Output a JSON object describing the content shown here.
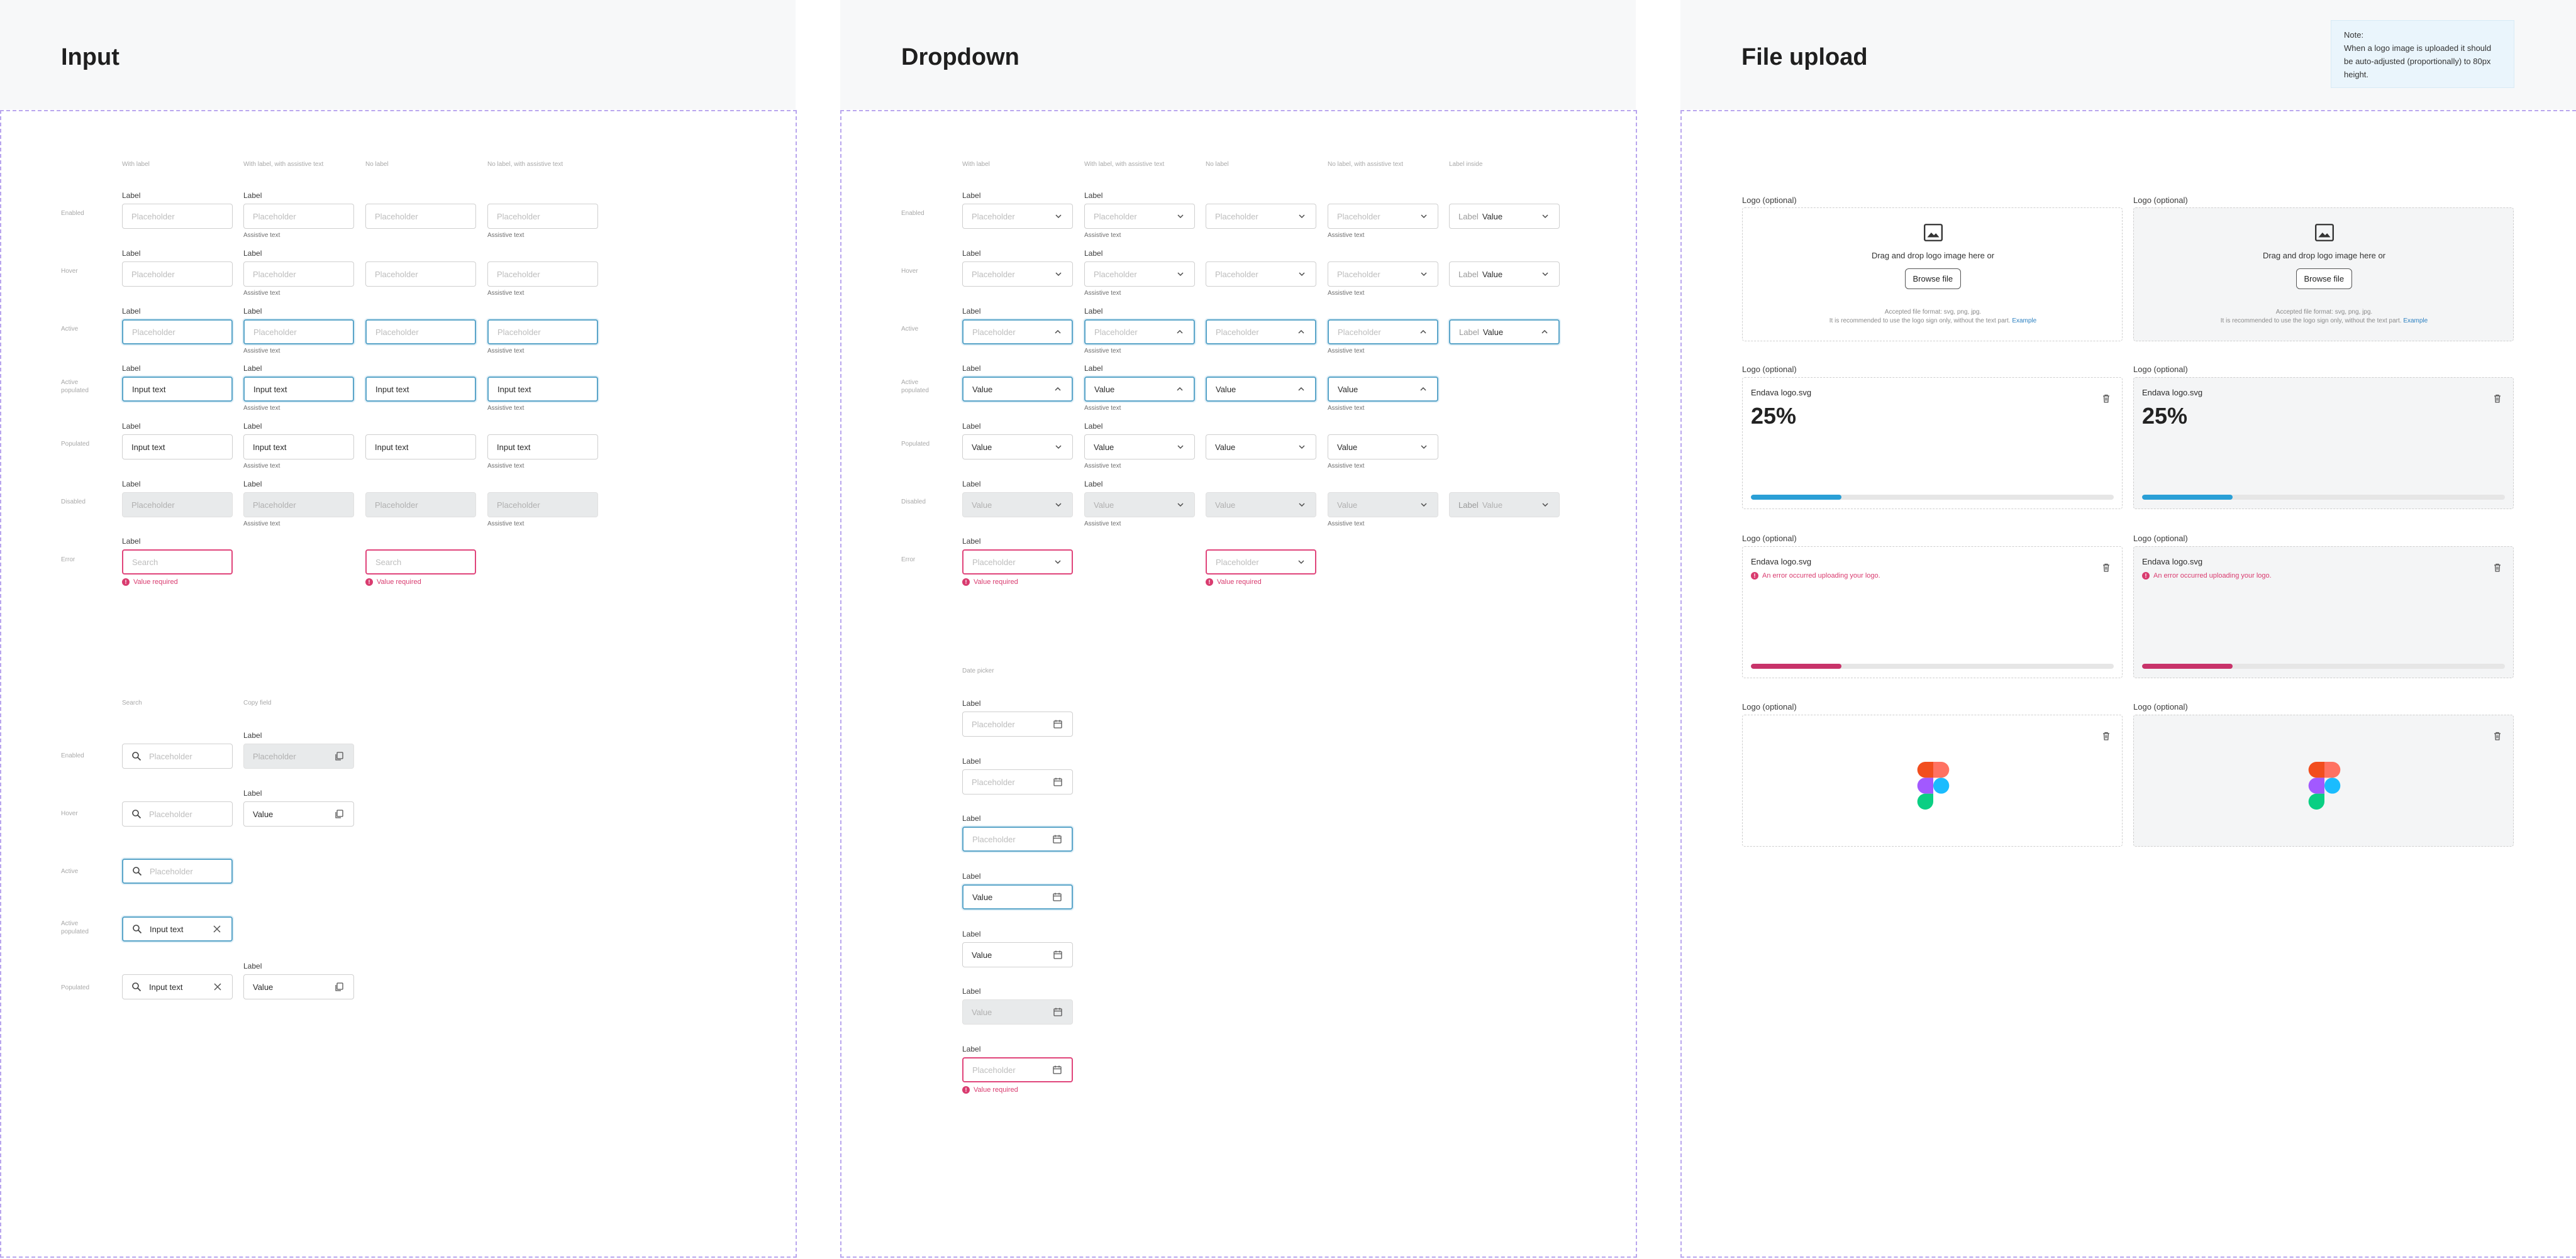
{
  "frames": {
    "input": {
      "title": "Input"
    },
    "dropdown": {
      "title": "Dropdown"
    },
    "upload": {
      "title": "File upload"
    }
  },
  "common": {
    "label": "Label",
    "placeholder": "Placeholder",
    "assistive": "Assistive text",
    "input_text": "Input text",
    "value": "Value",
    "search_ph": "Search",
    "error": "Value required"
  },
  "states": {
    "enabled": "Enabled",
    "hover": "Hover",
    "active": "Active",
    "active_populated": "Active populated",
    "populated": "Populated",
    "disabled": "Disabled",
    "error": "Error"
  },
  "input_cols": [
    "With label",
    "With label, with assistive text",
    "No label",
    "No label, with assistive text"
  ],
  "dropdown_cols": [
    "With label",
    "With label, with assistive text",
    "No label",
    "No label, with assistive text",
    "Label inside"
  ],
  "search_cols": [
    "Search",
    "Copy field"
  ],
  "date_picker_title": "Date picker",
  "upload": {
    "note": "Note:\nWhen a logo image is uploaded it should be auto-adjusted (proportionally) to 80px height.",
    "logo_label": "Logo (optional)",
    "drag_text": "Drag and drop logo image here or",
    "browse": "Browse file",
    "accepted": "Accepted file format: svg, png, jpg.",
    "recommend": "It is recommended to use the logo sign only, without the text part.",
    "example": "Example",
    "filename": "Endava logo.svg",
    "progress_text": "25%",
    "progress_value": 0.25,
    "error_msg": "An error occurred uploading your logo.",
    "colors": {
      "progress": "#2a9fd6",
      "error": "#c8336a",
      "accent": "#2a7fc0"
    }
  },
  "colors": {
    "active_border": "#5aa5c9",
    "error": "#e0457b",
    "frame_border": "#b9a6ee"
  }
}
